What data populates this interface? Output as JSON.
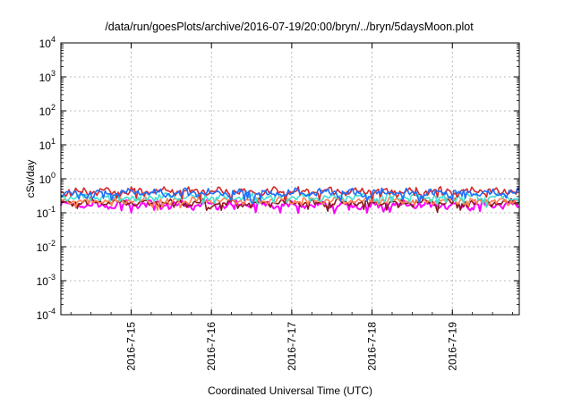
{
  "chart_data": {
    "type": "line",
    "title": "/data/run/goesPlots/archive/2016-07-19/20:00/bryn/../bryn/5daysMoon.plot",
    "xlabel": "Coordinated Universal Time (UTC)",
    "ylabel": "cSv/day",
    "yscale": "log",
    "ylim": [
      0.0001,
      10000
    ],
    "xlim": [
      "2016-07-14 03:00",
      "2016-07-19 20:00"
    ],
    "grid": true,
    "y_ticks": [
      {
        "value": 0.0001,
        "mantissa": "10",
        "exp": "-4"
      },
      {
        "value": 0.001,
        "mantissa": "10",
        "exp": "-3"
      },
      {
        "value": 0.01,
        "mantissa": "10",
        "exp": "-2"
      },
      {
        "value": 0.1,
        "mantissa": "10",
        "exp": "-1"
      },
      {
        "value": 1,
        "mantissa": "10",
        "exp": "0"
      },
      {
        "value": 10,
        "mantissa": "10",
        "exp": "1"
      },
      {
        "value": 100,
        "mantissa": "10",
        "exp": "2"
      },
      {
        "value": 1000,
        "mantissa": "10",
        "exp": "3"
      },
      {
        "value": 10000,
        "mantissa": "10",
        "exp": "4"
      }
    ],
    "x_ticks": [
      {
        "value": "2016-07-15 00:00",
        "label": "2016-7-15"
      },
      {
        "value": "2016-07-16 00:00",
        "label": "2016-7-16"
      },
      {
        "value": "2016-07-17 00:00",
        "label": "2016-7-17"
      },
      {
        "value": "2016-07-18 00:00",
        "label": "2016-7-18"
      },
      {
        "value": "2016-07-19 00:00",
        "label": "2016-7-19"
      }
    ],
    "series": [
      {
        "color": "#ff00ff",
        "base": 0.17,
        "jitter": 0.3
      },
      {
        "color": "#8b1a1a",
        "base": 0.2,
        "jitter": 0.22
      },
      {
        "color": "#ff7f50",
        "base": 0.23,
        "jitter": 0.18
      },
      {
        "color": "#40e0d0",
        "base": 0.29,
        "jitter": 0.2
      },
      {
        "color": "#d62728",
        "base": 0.42,
        "jitter": 0.28
      },
      {
        "color": "#1e6fff",
        "base": 0.38,
        "jitter": 0.3
      }
    ]
  }
}
